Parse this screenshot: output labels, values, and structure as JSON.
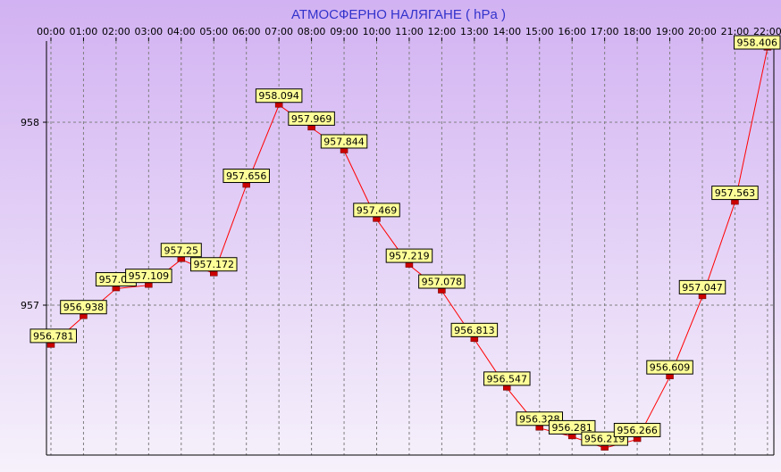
{
  "chart_data": {
    "type": "line",
    "title": "АТМОСФЕРНО НАЛЯГАНЕ  ( hPa )",
    "xlabel": "",
    "ylabel": "",
    "x": [
      "00:00",
      "01:00",
      "02:00",
      "03:00",
      "04:00",
      "05:00",
      "06:00",
      "07:00",
      "08:00",
      "09:00",
      "10:00",
      "11:00",
      "12:00",
      "13:00",
      "14:00",
      "15:00",
      "16:00",
      "17:00",
      "18:00",
      "19:00",
      "20:00",
      "21:00",
      "22:00"
    ],
    "series": [
      {
        "values": [
          956.781,
          956.938,
          957.09,
          957.109,
          957.25,
          957.172,
          957.656,
          958.094,
          957.969,
          957.844,
          957.469,
          957.219,
          957.078,
          956.813,
          956.547,
          956.328,
          956.281,
          956.219,
          956.266,
          956.609,
          957.047,
          957.563,
          958.406
        ],
        "labels": [
          "956.781",
          "956.938",
          "957.09",
          "957.109",
          "957.25",
          "957.172",
          "957.656",
          "958.094",
          "957.969",
          "957.844",
          "957.469",
          "957.219",
          "957.078",
          "956.813",
          "956.547",
          "956.328",
          "956.281",
          "956.219",
          "956.266",
          "956.609",
          "957.047",
          "957.563",
          "958.406"
        ]
      }
    ],
    "yticks": [
      "957",
      "958"
    ],
    "ylim": [
      956.2,
      958.45
    ],
    "grid": true,
    "legend": "none",
    "colors": {
      "title": "#3333cc",
      "line": "#ff0000",
      "marker": "#cc0000",
      "label_bg": "#ffff99",
      "grid": "#7f7f7f",
      "bg_top": "#d2b2f2",
      "bg_bottom": "#f6f1fb"
    }
  }
}
